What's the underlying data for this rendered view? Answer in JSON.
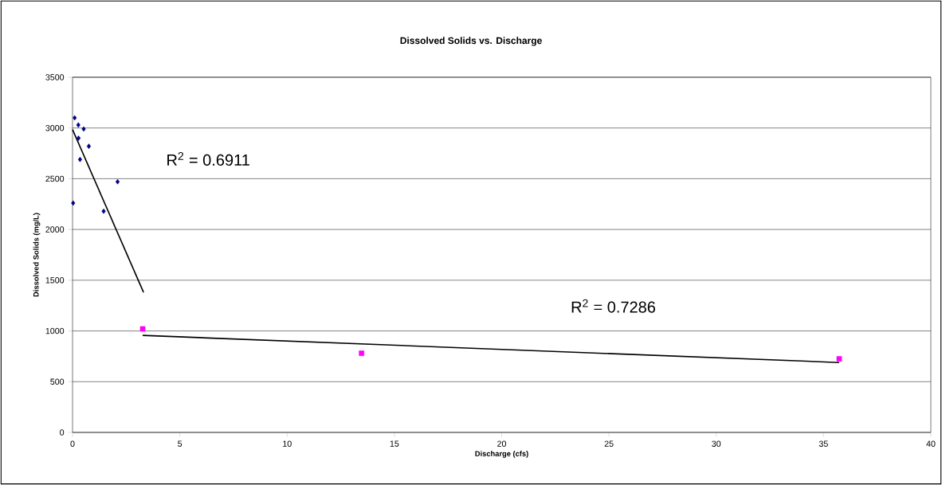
{
  "chart_data": {
    "type": "scatter",
    "title": "Dissolved Solids vs. Discharge",
    "xlabel": "Discharge (cfs)",
    "ylabel": "Dissolved Solids (mg/L)",
    "xlim": [
      0,
      40
    ],
    "xticks": [
      0,
      5,
      10,
      15,
      20,
      25,
      30,
      35,
      40
    ],
    "ylim": [
      0,
      3500
    ],
    "yticks": [
      0,
      500,
      1000,
      1500,
      2000,
      2500,
      3000,
      3500
    ],
    "grid": "y",
    "series": [
      {
        "marker": "diamond",
        "color": "#000080",
        "x": [
          0.1,
          0.27,
          0.52,
          0.28,
          0.76,
          0.35,
          0.03,
          1.45,
          2.1
        ],
        "values": [
          3100,
          3030,
          2990,
          2900,
          2820,
          2690,
          2260,
          2180,
          2470
        ]
      },
      {
        "marker": "square",
        "color": "#ff00ff",
        "x": [
          3.27,
          13.47,
          35.73
        ],
        "values": [
          1020,
          780,
          725
        ]
      },
      {
        "type": "line",
        "marker": "none",
        "color": "#000000",
        "x": [
          0,
          3.31
        ],
        "values": [
          2985,
          1380
        ]
      },
      {
        "type": "line",
        "marker": "none",
        "color": "#000000",
        "x": [
          3.27,
          35.73
        ],
        "values": [
          956,
          689
        ]
      }
    ],
    "annotations": [
      "R$^{2}$ = 0.6911",
      "R$^{2}$ = 0.7286"
    ]
  }
}
